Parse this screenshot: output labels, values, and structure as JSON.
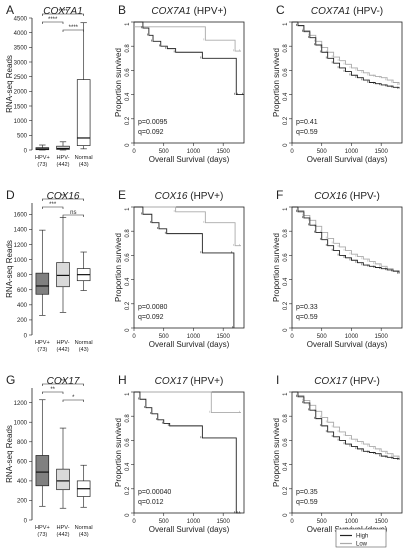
{
  "figure": {
    "legend": [
      {
        "label": "High",
        "color": "#222222"
      },
      {
        "label": "Low",
        "color": "#aaaaaa"
      }
    ],
    "box_categories": [
      {
        "name": "HPV+",
        "count": "(73)"
      },
      {
        "name": "HPV-",
        "count": "(442)"
      },
      {
        "name": "Normal",
        "count": "(43)"
      }
    ],
    "km_xlabel": "Overall Survival (days)",
    "km_ylabel": "Proportion survived",
    "box_ylabel": "RNA-seq Reads"
  },
  "chart_data": [
    {
      "panel": "A",
      "type": "box",
      "title": "COX7A1",
      "ylabel": "RNA-seq Reads",
      "ylim": [
        0,
        4500
      ],
      "yticks": [
        0,
        500,
        1000,
        1500,
        2000,
        2500,
        3000,
        3500,
        4000,
        4500
      ],
      "categories": [
        "HPV+ (73)",
        "HPV- (442)",
        "Normal (43)"
      ],
      "boxes": [
        {
          "whisker_low": 0,
          "q1": 10,
          "median": 30,
          "q3": 80,
          "whisker_high": 170,
          "fill": "#808080"
        },
        {
          "whisker_low": 0,
          "q1": 20,
          "median": 50,
          "q3": 130,
          "whisker_high": 280,
          "fill": "#d9d9d9"
        },
        {
          "whisker_low": 40,
          "q1": 150,
          "median": 410,
          "q3": 2400,
          "whisker_high": 4340,
          "fill": "#ffffff"
        }
      ],
      "significance": [
        {
          "from": 0,
          "to": 2,
          "label": "****"
        },
        {
          "from": 0,
          "to": 1,
          "label": "****"
        },
        {
          "from": 1,
          "to": 2,
          "label": "****"
        }
      ]
    },
    {
      "panel": "B",
      "type": "line",
      "title": "COX7A1",
      "title_suffix": "(HPV+)",
      "xlabel": "Overall Survival (days)",
      "ylabel": "Proportion survived",
      "xlim": [
        0,
        1850
      ],
      "ylim": [
        0,
        1.0
      ],
      "xticks": [
        0,
        500,
        1000,
        1500
      ],
      "yticks": [
        0,
        0.2,
        0.4,
        0.6,
        0.8,
        1.0
      ],
      "stats": [
        "p=0.0095",
        "q=0.092"
      ],
      "series": [
        {
          "name": "High",
          "x": [
            0,
            150,
            250,
            320,
            450,
            560,
            700,
            1150,
            1720,
            1760,
            1850
          ],
          "y": [
            1.0,
            0.95,
            0.89,
            0.84,
            0.8,
            0.78,
            0.75,
            0.7,
            0.4,
            0.4,
            0.4
          ]
        },
        {
          "name": "Low",
          "x": [
            0,
            1200,
            1700,
            1800
          ],
          "y": [
            0.96,
            0.85,
            0.76,
            0.76
          ]
        }
      ]
    },
    {
      "panel": "C",
      "type": "line",
      "title": "COX7A1",
      "title_suffix": "(HPV-)",
      "xlabel": "Overall Survival (days)",
      "ylabel": "Proportion survived",
      "xlim": [
        0,
        1850
      ],
      "ylim": [
        0,
        1.0
      ],
      "xticks": [
        0,
        500,
        1000,
        1500
      ],
      "yticks": [
        0,
        0.2,
        0.4,
        0.6,
        0.8,
        1.0
      ],
      "stats": [
        "p=0.41",
        "q=0.59"
      ],
      "series": [
        {
          "name": "High",
          "x": [
            0,
            100,
            200,
            300,
            400,
            500,
            600,
            700,
            800,
            900,
            1000,
            1100,
            1200,
            1300,
            1400,
            1500,
            1600,
            1700,
            1800
          ],
          "y": [
            1.0,
            0.97,
            0.92,
            0.87,
            0.81,
            0.75,
            0.7,
            0.66,
            0.62,
            0.59,
            0.56,
            0.54,
            0.52,
            0.5,
            0.49,
            0.48,
            0.47,
            0.46,
            0.45
          ]
        },
        {
          "name": "Low",
          "x": [
            0,
            100,
            200,
            300,
            400,
            500,
            600,
            700,
            800,
            900,
            1000,
            1100,
            1200,
            1300,
            1400,
            1500,
            1600,
            1700,
            1800
          ],
          "y": [
            1.0,
            0.97,
            0.93,
            0.89,
            0.84,
            0.79,
            0.75,
            0.71,
            0.68,
            0.65,
            0.62,
            0.6,
            0.58,
            0.56,
            0.55,
            0.54,
            0.52,
            0.5,
            0.48
          ]
        }
      ]
    },
    {
      "panel": "D",
      "type": "box",
      "title": "COX16",
      "ylabel": "RNA-seq Reads",
      "ylim": [
        0,
        1750
      ],
      "yticks": [
        0,
        200,
        400,
        600,
        800,
        1000,
        1200,
        1400,
        1600
      ],
      "categories": [
        "HPV+ (73)",
        "HPV- (442)",
        "Normal (43)"
      ],
      "boxes": [
        {
          "whisker_low": 260,
          "q1": 540,
          "median": 650,
          "q3": 820,
          "whisker_high": 1390,
          "fill": "#808080"
        },
        {
          "whisker_low": 300,
          "q1": 640,
          "median": 790,
          "q3": 960,
          "whisker_high": 1560,
          "fill": "#d9d9d9"
        },
        {
          "whisker_low": 590,
          "q1": 720,
          "median": 800,
          "q3": 880,
          "whisker_high": 1100,
          "fill": "#ffffff"
        }
      ],
      "significance": [
        {
          "from": 0,
          "to": 2,
          "label": "**"
        },
        {
          "from": 0,
          "to": 1,
          "label": "***"
        },
        {
          "from": 1,
          "to": 2,
          "label": "ns"
        }
      ]
    },
    {
      "panel": "E",
      "type": "line",
      "title": "COX16",
      "title_suffix": "(HPV+)",
      "xlabel": "Overall Survival (days)",
      "ylabel": "Proportion survived",
      "xlim": [
        0,
        1850
      ],
      "ylim": [
        0,
        1.0
      ],
      "xticks": [
        0,
        500,
        1000,
        1500
      ],
      "yticks": [
        0,
        0.2,
        0.4,
        0.6,
        0.8,
        1.0
      ],
      "stats": [
        "p=0.0080",
        "q=0.092"
      ],
      "series": [
        {
          "name": "High",
          "x": [
            0,
            150,
            300,
            420,
            550,
            1150,
            1670,
            1680
          ],
          "y": [
            1.0,
            0.94,
            0.87,
            0.82,
            0.78,
            0.62,
            0.62,
            0.0
          ]
        },
        {
          "name": "Low",
          "x": [
            0,
            700,
            1200,
            1700,
            1800
          ],
          "y": [
            1.0,
            0.96,
            0.87,
            0.68,
            0.68
          ]
        }
      ]
    },
    {
      "panel": "F",
      "type": "line",
      "title": "COX16",
      "title_suffix": "(HPV-)",
      "xlabel": "Overall Survival (days)",
      "ylabel": "Proportion survived",
      "xlim": [
        0,
        1850
      ],
      "ylim": [
        0,
        1.0
      ],
      "xticks": [
        0,
        500,
        1000,
        1500
      ],
      "yticks": [
        0,
        0.2,
        0.4,
        0.6,
        0.8,
        1.0
      ],
      "stats": [
        "p=0.33",
        "q=0.59"
      ],
      "series": [
        {
          "name": "High",
          "x": [
            0,
            100,
            200,
            300,
            400,
            500,
            600,
            700,
            800,
            900,
            1000,
            1100,
            1200,
            1300,
            1400,
            1500,
            1600,
            1700,
            1800
          ],
          "y": [
            1.0,
            0.96,
            0.91,
            0.85,
            0.79,
            0.73,
            0.68,
            0.64,
            0.6,
            0.58,
            0.56,
            0.54,
            0.52,
            0.51,
            0.5,
            0.49,
            0.48,
            0.47,
            0.45
          ]
        },
        {
          "name": "Low",
          "x": [
            0,
            100,
            200,
            300,
            400,
            500,
            600,
            700,
            800,
            900,
            1000,
            1100,
            1200,
            1300,
            1400,
            1500,
            1600,
            1700,
            1800
          ],
          "y": [
            1.0,
            0.97,
            0.93,
            0.89,
            0.84,
            0.79,
            0.74,
            0.7,
            0.67,
            0.64,
            0.61,
            0.59,
            0.57,
            0.55,
            0.53,
            0.51,
            0.49,
            0.47,
            0.46
          ]
        }
      ]
    },
    {
      "panel": "G",
      "type": "box",
      "title": "COX17",
      "ylabel": "RNA-seq Reads",
      "ylim": [
        0,
        1350
      ],
      "yticks": [
        0,
        200,
        400,
        600,
        800,
        1000,
        1200
      ],
      "categories": [
        "HPV+ (73)",
        "HPV- (442)",
        "Normal (43)"
      ],
      "boxes": [
        {
          "whisker_low": 140,
          "q1": 350,
          "median": 490,
          "q3": 660,
          "whisker_high": 1230,
          "fill": "#808080"
        },
        {
          "whisker_low": 120,
          "q1": 310,
          "median": 400,
          "q3": 520,
          "whisker_high": 940,
          "fill": "#d9d9d9"
        },
        {
          "whisker_low": 130,
          "q1": 240,
          "median": 320,
          "q3": 400,
          "whisker_high": 560,
          "fill": "#ffffff"
        }
      ],
      "significance": [
        {
          "from": 0,
          "to": 2,
          "label": "**"
        },
        {
          "from": 0,
          "to": 1,
          "label": "**"
        },
        {
          "from": 1,
          "to": 2,
          "label": "*"
        }
      ]
    },
    {
      "panel": "H",
      "type": "line",
      "title": "COX17",
      "title_suffix": "(HPV+)",
      "xlabel": "Overall Survival (days)",
      "ylabel": "Proportion survived",
      "xlim": [
        0,
        1850
      ],
      "ylim": [
        0,
        1.0
      ],
      "xticks": [
        0,
        500,
        1000,
        1500
      ],
      "yticks": [
        0,
        0.2,
        0.4,
        0.6,
        0.8,
        1.0
      ],
      "stats": [
        "p=0.00040",
        "q=0.012"
      ],
      "series": [
        {
          "name": "High",
          "x": [
            0,
            100,
            200,
            300,
            400,
            500,
            600,
            1150,
            1720,
            1760,
            1800
          ],
          "y": [
            1.0,
            0.94,
            0.87,
            0.82,
            0.77,
            0.74,
            0.72,
            0.62,
            0.0,
            0.0,
            0.0
          ]
        },
        {
          "name": "Low",
          "x": [
            0,
            1300,
            1800
          ],
          "y": [
            1.0,
            0.83,
            0.83
          ]
        }
      ]
    },
    {
      "panel": "I",
      "type": "line",
      "title": "COX17",
      "title_suffix": "(HPV-)",
      "xlabel": "Overall Survival (days)",
      "ylabel": "Proportion survived",
      "xlim": [
        0,
        1850
      ],
      "ylim": [
        0,
        1.0
      ],
      "xticks": [
        0,
        500,
        1000,
        1500
      ],
      "yticks": [
        0,
        0.2,
        0.4,
        0.6,
        0.8,
        1.0
      ],
      "stats": [
        "p=0.35",
        "q=0.59"
      ],
      "series": [
        {
          "name": "High",
          "x": [
            0,
            100,
            200,
            300,
            400,
            500,
            600,
            700,
            800,
            900,
            1000,
            1100,
            1200,
            1300,
            1400,
            1500,
            1600,
            1700,
            1800
          ],
          "y": [
            1.0,
            0.96,
            0.91,
            0.85,
            0.78,
            0.72,
            0.67,
            0.63,
            0.6,
            0.57,
            0.55,
            0.53,
            0.51,
            0.5,
            0.49,
            0.47,
            0.46,
            0.45,
            0.44
          ]
        },
        {
          "name": "Low",
          "x": [
            0,
            100,
            200,
            300,
            400,
            500,
            600,
            700,
            800,
            900,
            1000,
            1100,
            1200,
            1300,
            1400,
            1500,
            1600,
            1700,
            1800
          ],
          "y": [
            1.0,
            0.97,
            0.93,
            0.89,
            0.84,
            0.79,
            0.75,
            0.71,
            0.67,
            0.64,
            0.61,
            0.59,
            0.57,
            0.55,
            0.53,
            0.51,
            0.49,
            0.47,
            0.45
          ]
        }
      ]
    }
  ]
}
